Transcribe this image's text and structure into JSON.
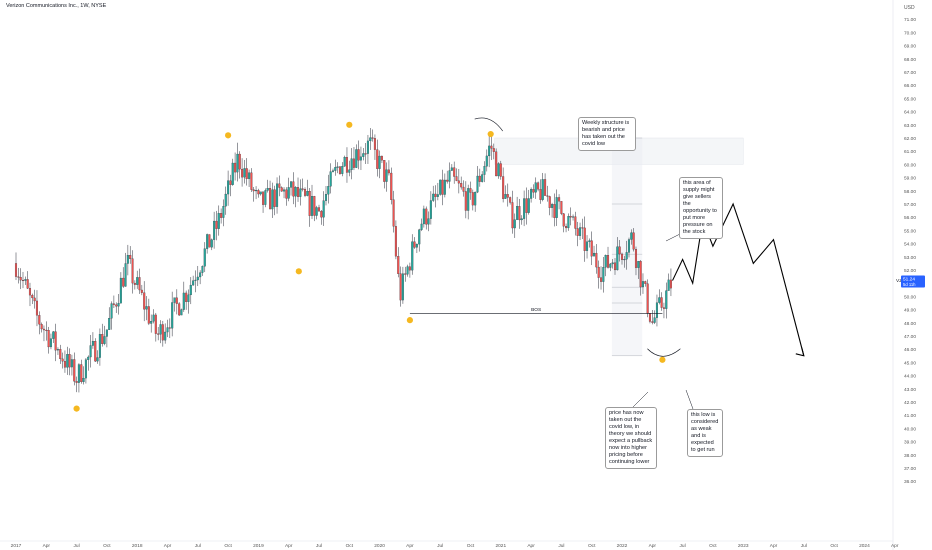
{
  "header": {
    "title": "Verizon Communications Inc., 1W, NYSE"
  },
  "colors": {
    "up": "#26a69a",
    "down": "#ef5350",
    "dot": "#f5b820",
    "axis_text": "#555555",
    "price_tag": "#2962ff"
  },
  "chart_data": {
    "type": "candlestick",
    "title": "Verizon Communications Inc., 1W, NYSE",
    "currency_label": "USD",
    "ylim": [
      35.5,
      72.5
    ],
    "y_ticks": [
      "71.00",
      "70.00",
      "69.00",
      "68.00",
      "67.00",
      "66.00",
      "65.00",
      "64.00",
      "63.00",
      "62.00",
      "61.00",
      "60.00",
      "59.00",
      "58.00",
      "57.00",
      "56.00",
      "55.00",
      "54.00",
      "53.00",
      "52.00",
      "51.00",
      "50.00",
      "49.00",
      "48.00",
      "47.00",
      "46.00",
      "45.00",
      "44.00",
      "43.00",
      "42.00",
      "41.00",
      "40.00",
      "39.00",
      "38.00",
      "37.00",
      "36.00"
    ],
    "x_ticks": [
      "2017",
      "Apr",
      "Jul",
      "Oct",
      "2018",
      "Apr",
      "Jul",
      "Oct",
      "2019",
      "Apr",
      "Jul",
      "Oct",
      "2020",
      "Apr",
      "Jul",
      "Oct",
      "2021",
      "Apr",
      "Jul",
      "Oct",
      "2022",
      "Apr",
      "Jul",
      "Oct",
      "2023",
      "Apr",
      "Jul",
      "Oct",
      "2024",
      "Apr"
    ],
    "last_price": {
      "value": 51.24,
      "label": "51.24",
      "sub_label": "5d 11h",
      "symbol": "VZ"
    },
    "trend": [
      [
        "2017-01",
        52.5
      ],
      [
        "2017-03",
        48.5
      ],
      [
        "2017-07",
        43.8
      ],
      [
        "2017-10",
        47.5
      ],
      [
        "2017-12",
        52.5
      ],
      [
        "2018-03",
        47.0
      ],
      [
        "2018-06",
        50.5
      ],
      [
        "2018-09",
        55.5
      ],
      [
        "2018-11",
        60.5
      ],
      [
        "2019-01",
        57.0
      ],
      [
        "2019-04",
        58.0
      ],
      [
        "2019-07",
        56.5
      ],
      [
        "2019-09",
        60.0
      ],
      [
        "2019-12",
        61.5
      ],
      [
        "2020-02",
        58.5
      ],
      [
        "2020-03",
        50.0
      ],
      [
        "2020-05",
        55.5
      ],
      [
        "2020-08",
        59.0
      ],
      [
        "2020-10",
        57.0
      ],
      [
        "2020-12",
        61.5
      ],
      [
        "2021-02",
        56.0
      ],
      [
        "2021-05",
        58.0
      ],
      [
        "2021-08",
        55.5
      ],
      [
        "2021-11",
        52.0
      ],
      [
        "2022-01",
        53.5
      ],
      [
        "2022-02",
        54.5
      ],
      [
        "2022-03",
        51.0
      ],
      [
        "2022-04",
        48.0
      ],
      [
        "2022-05",
        49.5
      ],
      [
        "2022-06",
        51.2
      ]
    ],
    "swing_points": [
      [
        "2017-07",
        41.5
      ],
      [
        "2018-10",
        62.2
      ],
      [
        "2019-05",
        51.9
      ],
      [
        "2019-10",
        63.0
      ],
      [
        "2020-04",
        48.2
      ],
      [
        "2020-12",
        62.3
      ],
      [
        "2022-05",
        45.2
      ]
    ],
    "bos_line": {
      "label": "BOS",
      "y": 48.7,
      "x_from": "2020-04",
      "x_to": "2022-05"
    },
    "supply_zone": {
      "y": [
        60.0,
        62.0
      ],
      "x_from": "2020-12",
      "x_to": "2023-01"
    },
    "fib_box": {
      "y": [
        45.5,
        62.0
      ],
      "x_from": "2021-12",
      "x_to": "2022-03",
      "levels": [
        45.5,
        49.5,
        50.7,
        53.2,
        57.0,
        62.0
      ]
    },
    "projection": [
      [
        "2022-06",
        51.2
      ],
      [
        "2022-07",
        52.8
      ],
      [
        "2022-08",
        51.0
      ],
      [
        "2022-09",
        55.8
      ],
      [
        "2022-10",
        53.8
      ],
      [
        "2022-12",
        57.0
      ],
      [
        "2023-02",
        52.5
      ],
      [
        "2023-04",
        54.3
      ],
      [
        "2023-07",
        45.5
      ]
    ],
    "annotations": [
      "Weekly structure is bearish and price has taken out the covid low",
      "this area of supply might give sellers the opportunity to put more pressure on the stock",
      "price has now taken out the covid low, in theory we should expect a pullback now into higher pricing before continuing lower",
      "this low is considered as weak and is expected to get run"
    ]
  }
}
